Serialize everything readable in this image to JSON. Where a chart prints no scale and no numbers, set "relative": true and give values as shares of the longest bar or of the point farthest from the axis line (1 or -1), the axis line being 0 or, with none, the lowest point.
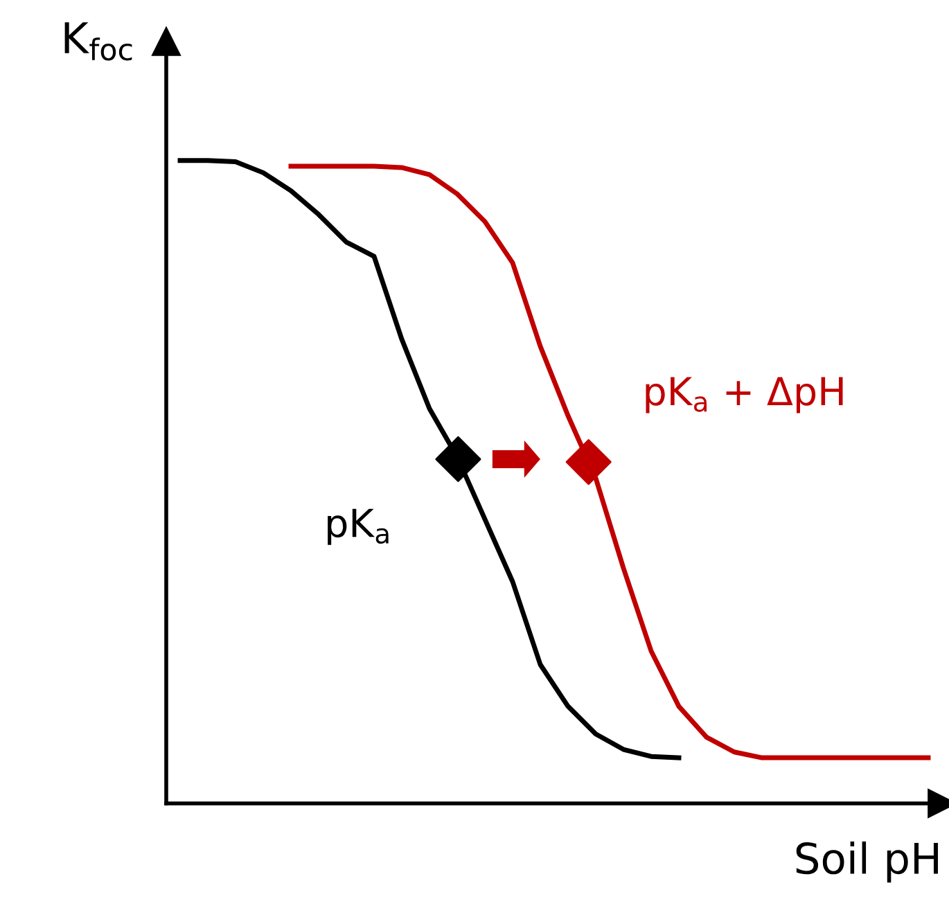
{
  "chart_data": {
    "type": "line",
    "relative": true,
    "xlabel": "Soil pH",
    "ylabel": "K$_{foc}$",
    "legend": false,
    "categories": [
      null,
      null,
      null,
      null,
      null,
      null,
      null,
      null,
      null,
      null,
      null,
      null,
      null,
      null,
      null,
      null,
      null,
      null,
      null,
      null,
      null,
      null,
      null,
      null,
      null,
      null,
      null,
      null
    ],
    "series": [
      {
        "name": "pK$_{a}$",
        "color": "#000000",
        "values": [
          1,
          1,
          0.998,
          0.981,
          0.953,
          0.916,
          0.873,
          0.851,
          0.722,
          0.614,
          0.539,
          0.442,
          0.345,
          0.216,
          0.151,
          0.108,
          0.084,
          0.073,
          0.071,
          null,
          null,
          null,
          null,
          null,
          null,
          null,
          null,
          null
        ]
      },
      {
        "name": "pK$_{a}$ + ΔpH",
        "color": "#c00000",
        "values": [
          null,
          null,
          null,
          null,
          0.991,
          0.991,
          0.991,
          0.991,
          0.989,
          0.978,
          0.948,
          0.905,
          0.841,
          0.711,
          0.603,
          0.506,
          0.366,
          0.237,
          0.151,
          0.103,
          0.08,
          0.071,
          0.071,
          0.071,
          0.071,
          0.071,
          0.071,
          0.071
        ]
      }
    ]
  }
}
